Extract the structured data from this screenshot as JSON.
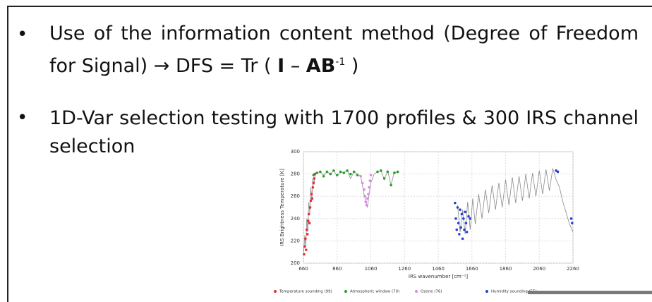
{
  "bullets": [
    {
      "parts": [
        "Use of the information content method (Degree of Freedom for Signal) → DFS = Tr ( ",
        "I",
        " – ",
        "AB",
        "-1",
        "  )"
      ]
    },
    {
      "parts": [
        "1D-Var selection testing with 1700 profiles & 300 IRS channel selection"
      ]
    }
  ],
  "chart_data": {
    "type": "scatter",
    "xlabel": "IRS wavenumber [cm⁻¹]",
    "ylabel": "IRS Brightness Temperature [K]",
    "xlim": [
      660,
      2260
    ],
    "ylim": [
      200,
      300
    ],
    "xticks": [
      660,
      860,
      1060,
      1260,
      1460,
      1660,
      1860,
      2060,
      2260
    ],
    "yticks": [
      200,
      220,
      240,
      260,
      280,
      300
    ],
    "grid": true,
    "spectrum": {
      "color": "#8a8a8a",
      "x": [
        662,
        668,
        674,
        680,
        686,
        692,
        698,
        704,
        710,
        716,
        722,
        730,
        740,
        760,
        780,
        800,
        820,
        840,
        860,
        880,
        900,
        920,
        940,
        960,
        980,
        1000,
        1010,
        1020,
        1030,
        1040,
        1050,
        1060,
        1080,
        1100,
        1120,
        1140,
        1160,
        1180,
        1200,
        1220,
        1560,
        1575,
        1590,
        1605,
        1620,
        1635,
        1650,
        1665,
        1680,
        1700,
        1720,
        1740,
        1760,
        1780,
        1800,
        1820,
        1840,
        1860,
        1880,
        1900,
        1920,
        1940,
        1960,
        1980,
        2000,
        2020,
        2040,
        2060,
        2080,
        2100,
        2120,
        2140,
        2160,
        2180,
        2200,
        2220,
        2240,
        2260
      ],
      "y": [
        210,
        225,
        215,
        240,
        228,
        255,
        245,
        268,
        258,
        276,
        270,
        280,
        281,
        282,
        279,
        282,
        280,
        283,
        278,
        282,
        281,
        283,
        276,
        282,
        280,
        278,
        270,
        262,
        255,
        250,
        262,
        272,
        280,
        282,
        283,
        275,
        283,
        270,
        282,
        281,
        null,
        252,
        228,
        248,
        226,
        255,
        230,
        258,
        235,
        262,
        240,
        266,
        245,
        270,
        248,
        272,
        250,
        275,
        252,
        277,
        254,
        278,
        256,
        280,
        258,
        281,
        260,
        283,
        262,
        284,
        265,
        285,
        275,
        268,
        255,
        245,
        235,
        228
      ]
    },
    "series": [
      {
        "name": "Temperature sounding (99)",
        "color": "#e03030",
        "x": [
          664,
          668,
          672,
          676,
          680,
          684,
          688,
          692,
          696,
          700,
          704,
          708,
          712,
          716,
          720,
          724,
          728
        ],
        "y": [
          208,
          215,
          222,
          212,
          230,
          226,
          238,
          244,
          236,
          250,
          256,
          262,
          258,
          268,
          272,
          276,
          280
        ]
      },
      {
        "name": "Atmospheric window (70)",
        "color": "#2ca02c",
        "x": [
          720,
          740,
          760,
          780,
          800,
          820,
          840,
          860,
          880,
          900,
          920,
          940,
          960,
          980,
          1100,
          1120,
          1140,
          1160,
          1180,
          1200,
          1220
        ],
        "y": [
          279,
          281,
          282,
          278,
          282,
          280,
          283,
          279,
          282,
          281,
          283,
          280,
          282,
          279,
          282,
          283,
          276,
          282,
          270,
          281,
          282
        ]
      },
      {
        "name": "Ozone (76)",
        "color": "#d98be0",
        "x": [
          1000,
          1010,
          1020,
          1025,
          1030,
          1035,
          1040,
          1045,
          1050,
          1055,
          1060
        ],
        "y": [
          278,
          272,
          266,
          260,
          255,
          252,
          258,
          262,
          268,
          274,
          279
        ]
      },
      {
        "name": "Humidity sounding (55)",
        "color": "#2a3fd0",
        "x": [
          1560,
          1565,
          1570,
          1575,
          1580,
          1585,
          1590,
          1595,
          1600,
          1605,
          1610,
          1615,
          1620,
          1625,
          1630,
          1640,
          1650,
          2160,
          2170,
          2250,
          2255
        ],
        "y": [
          254,
          240,
          230,
          250,
          236,
          226,
          248,
          232,
          244,
          222,
          240,
          230,
          246,
          236,
          228,
          242,
          240,
          283,
          282,
          240,
          236
        ]
      }
    ]
  }
}
